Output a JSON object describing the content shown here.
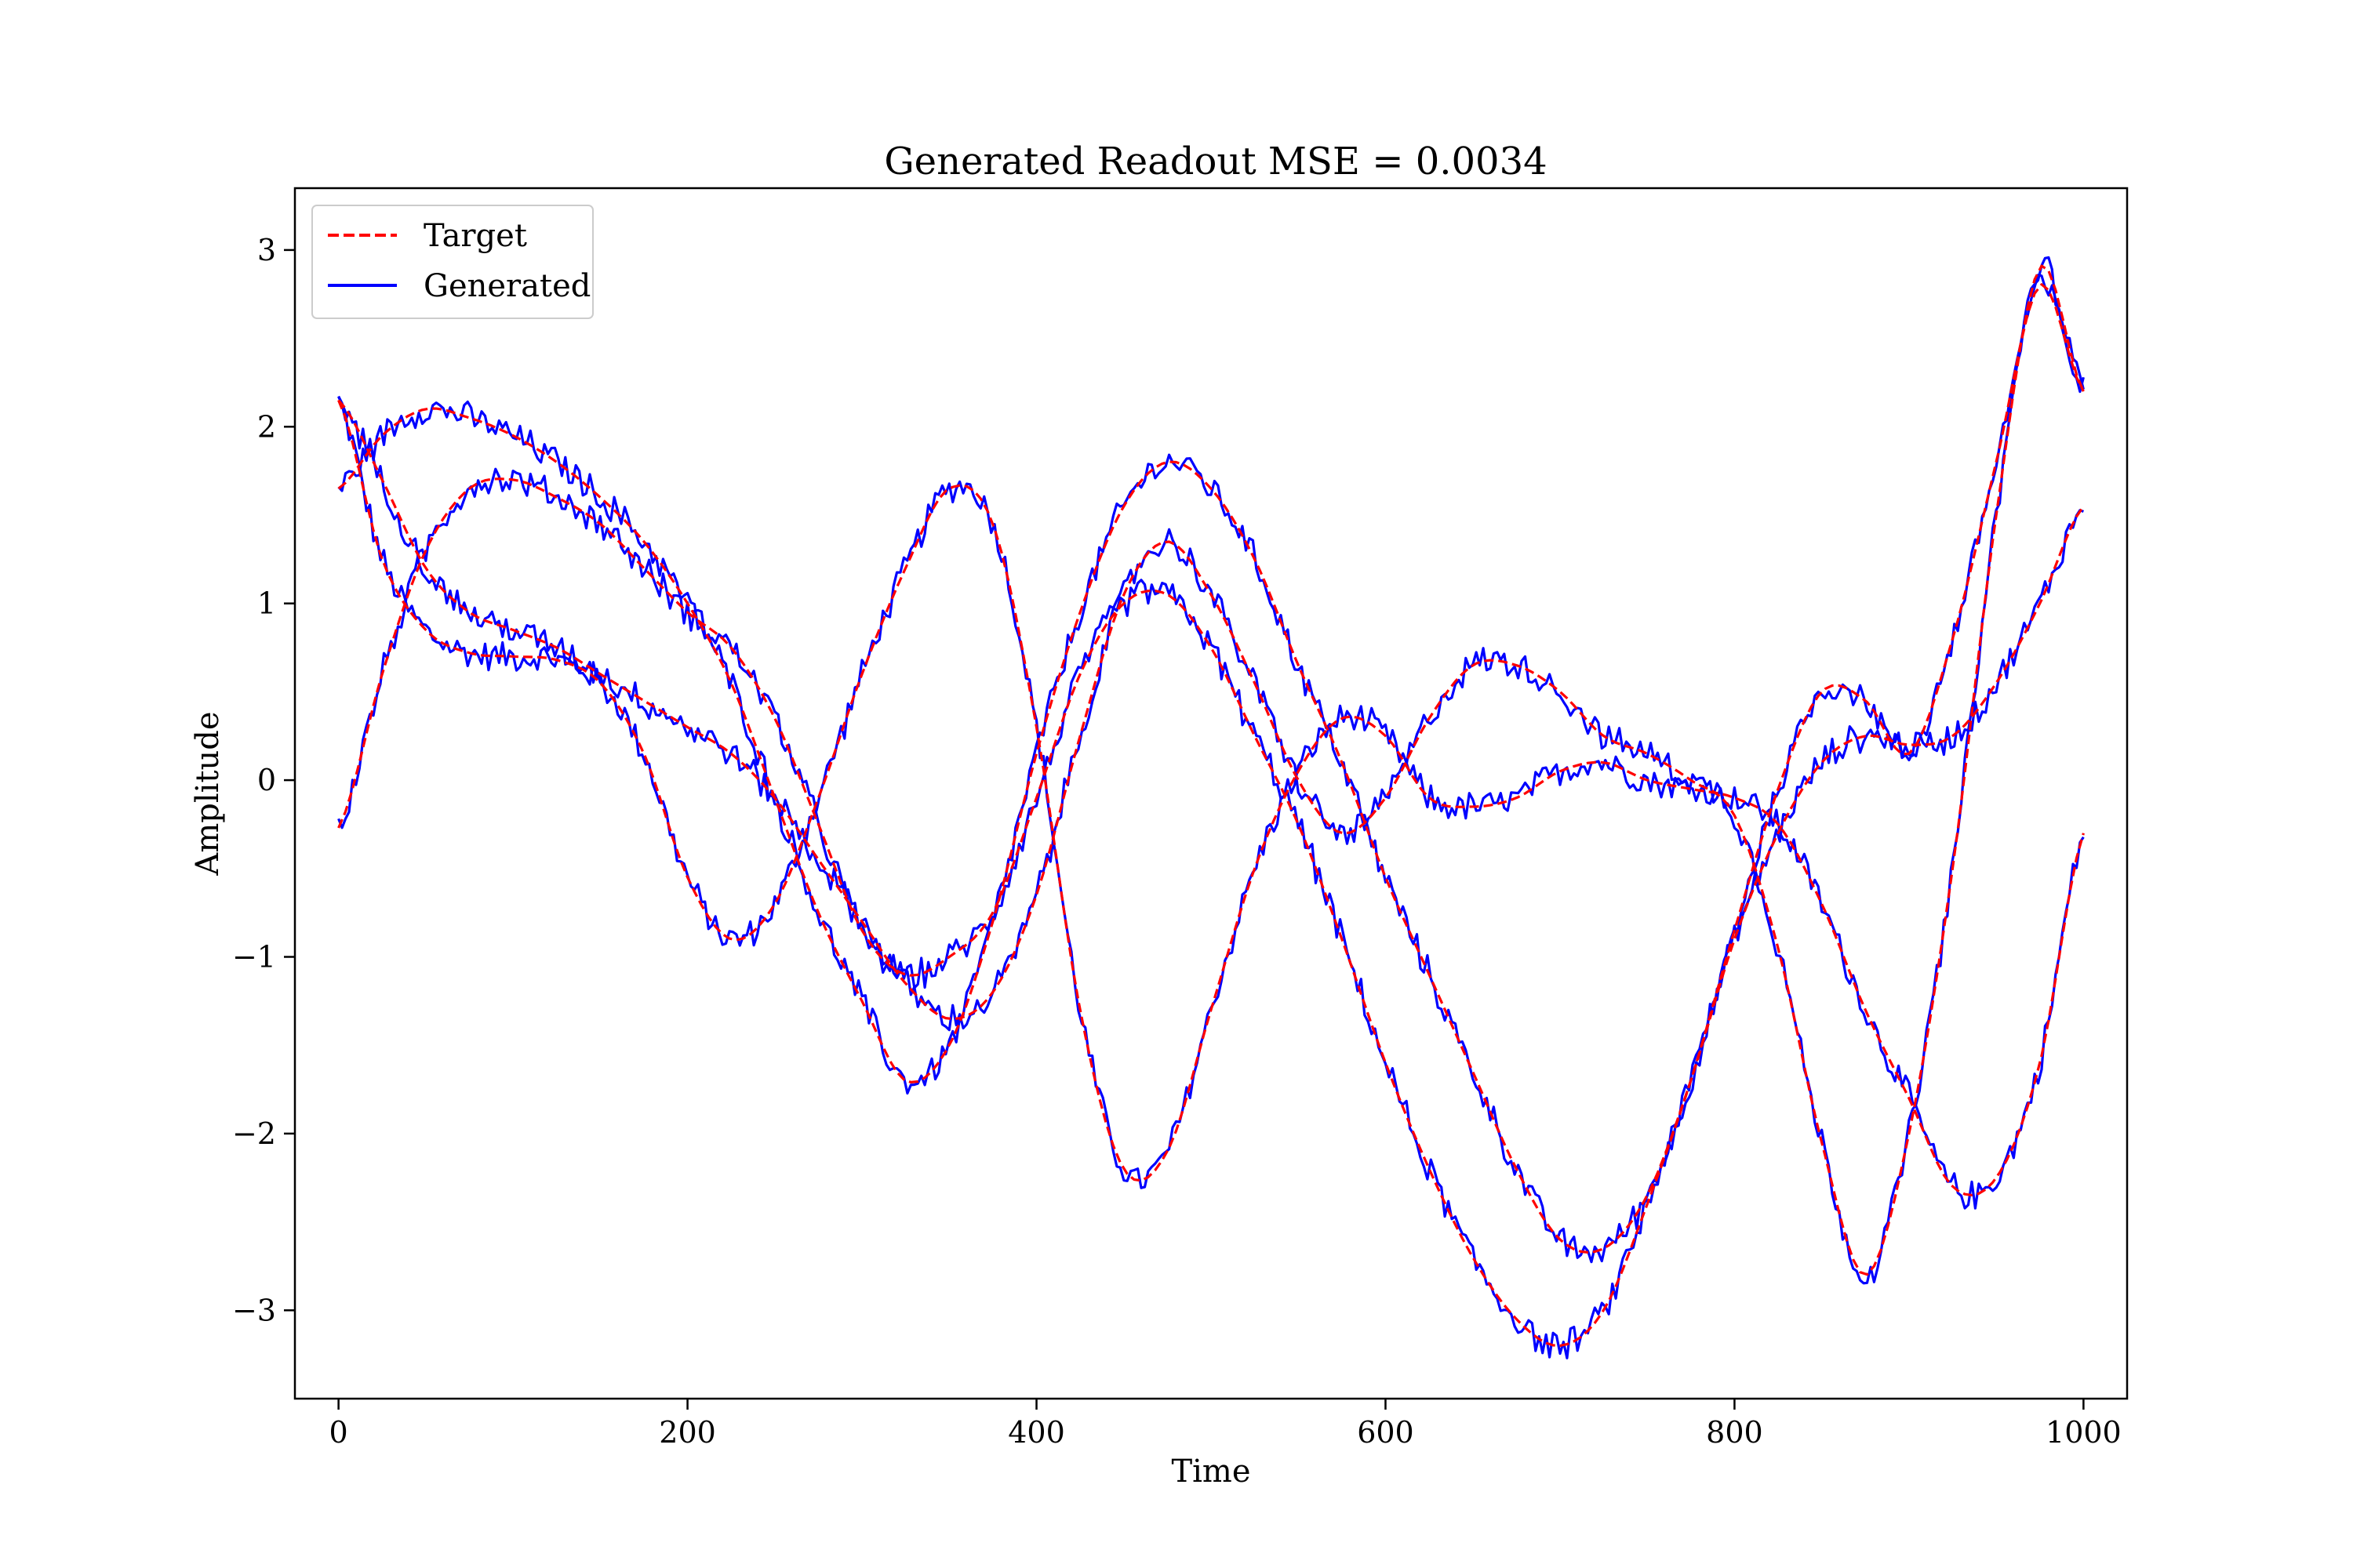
{
  "chart_data": {
    "type": "line",
    "title": "Generated Readout MSE = 0.0034",
    "xlabel": "Time",
    "ylabel": "Amplitude",
    "xlim": [
      -25,
      1025
    ],
    "ylim": [
      -3.5,
      3.35
    ],
    "xticks": [
      0,
      200,
      400,
      600,
      800,
      1000
    ],
    "xtick_labels": [
      "0",
      "200",
      "400",
      "600",
      "800",
      "1000"
    ],
    "yticks": [
      -3,
      -2,
      -1,
      0,
      1,
      2,
      3
    ],
    "ytick_labels": [
      "−3",
      "−2",
      "−1",
      "0",
      "1",
      "2",
      "3"
    ],
    "grid": false,
    "legend": {
      "position": "top-left",
      "entries": [
        {
          "label": "Target",
          "color": "#ff0000",
          "style": "dashed"
        },
        {
          "label": "Generated",
          "color": "#0000ff",
          "style": "solid"
        }
      ]
    },
    "x": [
      0,
      25,
      50,
      75,
      100,
      125,
      150,
      175,
      200,
      225,
      250,
      275,
      300,
      325,
      350,
      375,
      400,
      425,
      450,
      475,
      500,
      525,
      550,
      575,
      600,
      625,
      650,
      675,
      700,
      725,
      750,
      775,
      800,
      825,
      850,
      875,
      900,
      925,
      950,
      975,
      1000
    ],
    "series": [
      {
        "name": "Target",
        "color": "#ff0000",
        "curves": [
          [
            2.15,
            1.25,
            0.85,
            0.72,
            0.7,
            0.68,
            0.55,
            0.15,
            -0.55,
            -0.9,
            -0.7,
            -0.1,
            0.6,
            1.2,
            1.65,
            1.45,
            0.3,
            -1.3,
            -2.2,
            -2.1,
            -1.3,
            -0.5,
            0.05,
            0.35,
            0.25,
            -0.1,
            -0.15,
            -0.1,
            0.05,
            0.1,
            0.0,
            -0.05,
            -0.1,
            -0.25,
            -0.7,
            -1.3,
            -1.8,
            -2.3,
            -2.25,
            -1.6,
            -0.3
          ],
          [
            1.65,
            1.95,
            2.1,
            2.05,
            1.95,
            1.8,
            1.6,
            1.35,
            1.0,
            0.55,
            -0.1,
            -0.75,
            -1.25,
            -1.7,
            -1.5,
            -0.8,
            0.15,
            0.95,
            1.55,
            1.8,
            1.65,
            1.25,
            0.65,
            0.1,
            -0.55,
            -1.1,
            -1.65,
            -2.2,
            -2.6,
            -2.65,
            -2.35,
            -1.7,
            -0.9,
            -0.3,
            0.1,
            0.25,
            0.2,
            0.25,
            0.55,
            1.0,
            1.55
          ],
          [
            -0.27,
            0.6,
            1.3,
            1.65,
            1.7,
            1.6,
            1.45,
            1.2,
            0.95,
            0.75,
            0.35,
            -0.25,
            -0.85,
            -1.1,
            -1.0,
            -0.75,
            -0.1,
            0.6,
            1.0,
            1.05,
            0.75,
            0.25,
            -0.25,
            -0.9,
            -1.6,
            -2.2,
            -2.7,
            -3.05,
            -3.2,
            -3.0,
            -2.4,
            -1.7,
            -0.85,
            -0.05,
            0.5,
            0.45,
            0.15,
            0.8,
            1.8,
            2.8,
            2.2
          ],
          [
            2.15,
            1.7,
            1.2,
            0.95,
            0.85,
            0.75,
            0.6,
            0.45,
            0.3,
            0.15,
            -0.1,
            -0.45,
            -0.8,
            -1.15,
            -1.35,
            -1.2,
            -0.65,
            0.25,
            1.05,
            1.35,
            1.05,
            0.55,
            0.0,
            -0.3,
            -0.1,
            0.35,
            0.65,
            0.65,
            0.5,
            0.25,
            0.15,
            0.0,
            -0.2,
            -0.95,
            -2.05,
            -2.8,
            -2.0,
            -0.5,
            1.5,
            2.9,
            2.2
          ]
        ]
      },
      {
        "name": "Generated",
        "color": "#0000ff",
        "noise": 0.06,
        "curves": [
          [
            2.15,
            1.25,
            0.85,
            0.72,
            0.7,
            0.68,
            0.55,
            0.15,
            -0.55,
            -0.9,
            -0.7,
            -0.1,
            0.6,
            1.2,
            1.65,
            1.45,
            0.3,
            -1.3,
            -2.2,
            -2.1,
            -1.3,
            -0.5,
            0.05,
            0.35,
            0.25,
            -0.1,
            -0.15,
            -0.1,
            0.05,
            0.1,
            0.0,
            -0.05,
            -0.1,
            -0.25,
            -0.7,
            -1.3,
            -1.8,
            -2.3,
            -2.25,
            -1.6,
            -0.3
          ],
          [
            1.65,
            1.95,
            2.1,
            2.05,
            1.95,
            1.8,
            1.6,
            1.35,
            1.0,
            0.55,
            -0.1,
            -0.75,
            -1.25,
            -1.7,
            -1.5,
            -0.8,
            0.15,
            0.95,
            1.55,
            1.8,
            1.65,
            1.25,
            0.65,
            0.1,
            -0.55,
            -1.1,
            -1.65,
            -2.2,
            -2.6,
            -2.65,
            -2.35,
            -1.7,
            -0.9,
            -0.3,
            0.1,
            0.25,
            0.2,
            0.25,
            0.55,
            1.0,
            1.55
          ],
          [
            -0.27,
            0.6,
            1.3,
            1.65,
            1.7,
            1.6,
            1.45,
            1.2,
            0.95,
            0.75,
            0.35,
            -0.25,
            -0.85,
            -1.1,
            -1.0,
            -0.75,
            -0.1,
            0.6,
            1.0,
            1.05,
            0.75,
            0.25,
            -0.25,
            -0.9,
            -1.6,
            -2.2,
            -2.7,
            -3.05,
            -3.2,
            -3.0,
            -2.4,
            -1.7,
            -0.85,
            -0.05,
            0.5,
            0.45,
            0.15,
            0.8,
            1.8,
            2.8,
            2.2
          ],
          [
            2.15,
            1.7,
            1.2,
            0.95,
            0.85,
            0.75,
            0.6,
            0.45,
            0.3,
            0.15,
            -0.1,
            -0.45,
            -0.8,
            -1.15,
            -1.35,
            -1.2,
            -0.65,
            0.25,
            1.05,
            1.35,
            1.05,
            0.55,
            0.0,
            -0.3,
            -0.1,
            0.35,
            0.65,
            0.65,
            0.5,
            0.25,
            0.15,
            0.0,
            -0.2,
            -0.95,
            -2.05,
            -2.8,
            -2.0,
            -0.5,
            1.5,
            2.9,
            2.2
          ]
        ]
      }
    ]
  }
}
